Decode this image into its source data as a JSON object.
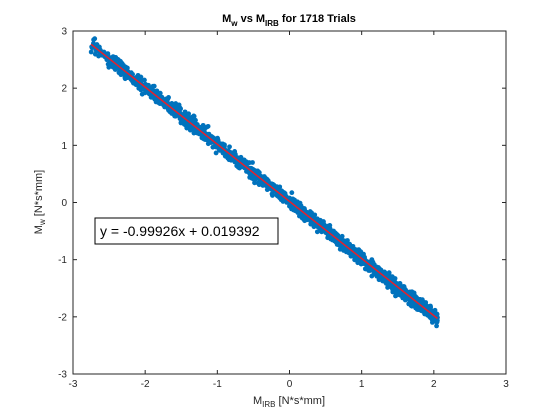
{
  "chart_data": {
    "type": "scatter",
    "title": {
      "main": "M",
      "sub1": "w",
      "mid": " vs M",
      "sub2": "IRB",
      "rest": " for 1718 Trials"
    },
    "xlabel": {
      "main": "M",
      "sub": "IRB",
      "rest": " [N*s*mm]"
    },
    "ylabel": {
      "main": "M",
      "sub": "w",
      "rest": " [N*s*mm]"
    },
    "xlim": [
      -3,
      3
    ],
    "ylim": [
      -3,
      3
    ],
    "xticks": [
      "-3",
      "-2",
      "-1",
      "0",
      "1",
      "2",
      "3"
    ],
    "yticks": [
      "-3",
      "-2",
      "-1",
      "0",
      "1",
      "2",
      "3"
    ],
    "grid": false,
    "series": [
      {
        "kind": "scatter",
        "color": "#0072BD",
        "n_points": 1718,
        "x_range": [
          -2.75,
          2.05
        ],
        "band": "points lie along the fit line"
      },
      {
        "kind": "fit-line",
        "color": "#E8202A",
        "slope": -0.99926,
        "intercept": 0.019392,
        "x_range": [
          -2.75,
          2.05
        ]
      }
    ],
    "annotation": "y = -0.99926x + 0.019392"
  }
}
